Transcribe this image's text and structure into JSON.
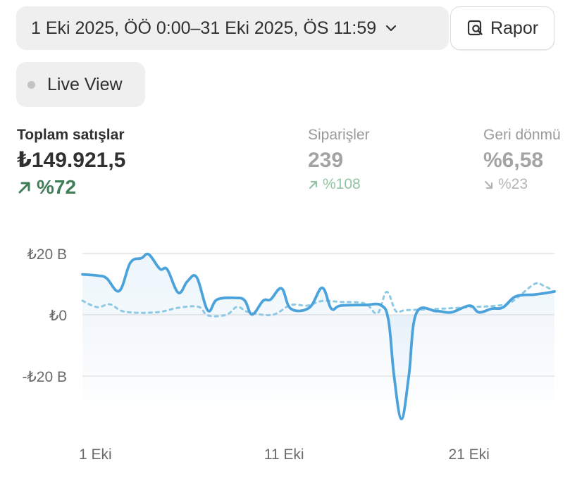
{
  "date_range": {
    "label": "1 Eki 2025, ÖÖ 0:00–31 Eki 2025, ÖS 11:59"
  },
  "report_button": {
    "label": "Rapor"
  },
  "live_view": {
    "label": "Live View"
  },
  "metrics": [
    {
      "label": "Toplam satışlar",
      "value": "₺149.921,5",
      "change": "%72",
      "direction": "up"
    },
    {
      "label": "Siparişler",
      "value": "239",
      "change": "%108",
      "direction": "up"
    },
    {
      "label": "Geri dönmü",
      "value": "%6,58",
      "change": "%23",
      "direction": "down"
    }
  ],
  "colors": {
    "series_current": "#4ca3dc",
    "series_previous": "#8ec9e4",
    "positive": "#3e7d57",
    "muted": "#a3a3a3"
  },
  "chart_data": {
    "type": "line",
    "x_unit": "day of October 2025",
    "y_unit": "B (thousand ₺)",
    "ylim": [
      -30,
      25
    ],
    "yticks": [
      20,
      0,
      -20
    ],
    "ytick_labels": [
      "₺20 B",
      "₺0",
      "-₺20 B"
    ],
    "xticks": [
      1,
      11,
      21
    ],
    "xtick_labels": [
      "1 Eki",
      "11 Eki",
      "21 Eki"
    ],
    "grid": true,
    "series": [
      {
        "style": "solid",
        "points": [
          [
            1,
            13.2
          ],
          [
            1.8,
            12.8
          ],
          [
            2.3,
            12.0
          ],
          [
            3.0,
            7.8
          ],
          [
            3.6,
            17.0
          ],
          [
            4.2,
            18.5
          ],
          [
            4.6,
            19.7
          ],
          [
            5.2,
            15.0
          ],
          [
            5.6,
            14.8
          ],
          [
            6.2,
            7.2
          ],
          [
            6.7,
            11.0
          ],
          [
            7.2,
            12.2
          ],
          [
            7.8,
            1.4
          ],
          [
            8.3,
            5.0
          ],
          [
            9.3,
            5.5
          ],
          [
            9.8,
            4.7
          ],
          [
            10.2,
            0.1
          ],
          [
            10.8,
            4.6
          ],
          [
            11.2,
            5.0
          ],
          [
            11.8,
            8.6
          ],
          [
            12.3,
            2.0
          ],
          [
            13.3,
            2.3
          ],
          [
            14.0,
            8.8
          ],
          [
            14.5,
            2.0
          ],
          [
            15.0,
            3.0
          ],
          [
            16.3,
            3.2
          ],
          [
            17.2,
            3.1
          ],
          [
            17.6,
            -2.0
          ],
          [
            17.9,
            -20.0
          ],
          [
            18.3,
            -34.0
          ],
          [
            18.7,
            -20.0
          ],
          [
            19.1,
            0.4
          ],
          [
            20.2,
            1.2
          ],
          [
            21.0,
            0.8
          ],
          [
            22.0,
            3.0
          ],
          [
            22.5,
            0.8
          ],
          [
            23.2,
            2.0
          ],
          [
            23.8,
            2.4
          ],
          [
            24.5,
            6.0
          ],
          [
            25.5,
            6.6
          ],
          [
            26.0,
            7.0
          ],
          [
            26.6,
            7.6
          ]
        ]
      },
      {
        "style": "dashed",
        "points": [
          [
            1,
            4.6
          ],
          [
            1.8,
            2.5
          ],
          [
            2.5,
            3.4
          ],
          [
            3.3,
            1.0
          ],
          [
            5.0,
            0.8
          ],
          [
            6.2,
            2.3
          ],
          [
            7.3,
            2.6
          ],
          [
            7.8,
            -0.2
          ],
          [
            8.8,
            0.0
          ],
          [
            9.4,
            2.6
          ],
          [
            10.0,
            0.9
          ],
          [
            11.3,
            0.0
          ],
          [
            12.3,
            3.2
          ],
          [
            13.2,
            3.0
          ],
          [
            14.0,
            4.5
          ],
          [
            15.0,
            4.2
          ],
          [
            16.3,
            3.7
          ],
          [
            17.0,
            0.5
          ],
          [
            17.5,
            7.5
          ],
          [
            18.0,
            1.2
          ],
          [
            18.5,
            1.5
          ],
          [
            19.8,
            1.8
          ],
          [
            20.5,
            2.0
          ],
          [
            22.0,
            2.5
          ],
          [
            23.5,
            3.0
          ],
          [
            24.3,
            4.3
          ],
          [
            25.5,
            10.0
          ],
          [
            26.0,
            9.5
          ],
          [
            26.5,
            8.0
          ]
        ]
      }
    ]
  }
}
